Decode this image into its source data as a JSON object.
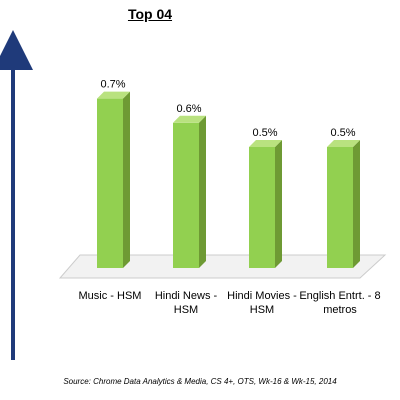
{
  "chart_data": {
    "type": "bar",
    "title": "Top 04",
    "categories": [
      "Music - HSM",
      "Hindi News - HSM",
      "Hindi Movies - HSM",
      "English Entrt. - 8 metros"
    ],
    "values": [
      0.7,
      0.6,
      0.5,
      0.5
    ],
    "data_labels": [
      "0.7%",
      "0.6%",
      "0.5%",
      "0.5%"
    ],
    "ylim": [
      0,
      0.8
    ],
    "grid": false,
    "legend": "none",
    "colors": {
      "bar_front": "#92d050",
      "bar_side": "#6e9a34",
      "bar_top": "#b9e27f",
      "floor": "#f2f2f2",
      "arrow": "#1f3a7a"
    }
  },
  "source": "Source: Chrome Data Analytics & Media, CS 4+, OTS, Wk-16 & Wk-15, 2014"
}
